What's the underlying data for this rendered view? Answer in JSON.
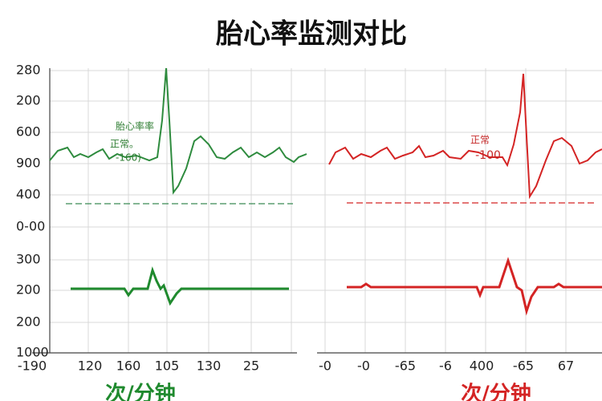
{
  "title": "胎心率监测对比",
  "y_labels": [
    "280",
    "200",
    "600",
    "900",
    "400",
    "0-00",
    "300",
    "200",
    "200",
    "1000"
  ],
  "left_panel": {
    "x_labels": [
      "-190",
      "120",
      "160",
      "105",
      "130",
      "25"
    ],
    "annotations": [
      "胎心率率",
      "正常。",
      "-160)"
    ],
    "unit": "次/分钟"
  },
  "right_panel": {
    "x_labels": [
      "-0",
      "-0",
      "-65",
      "-6",
      "400",
      "-65",
      "67"
    ],
    "annotations": [
      "正常",
      "-100"
    ],
    "unit": "次/分钟"
  }
}
